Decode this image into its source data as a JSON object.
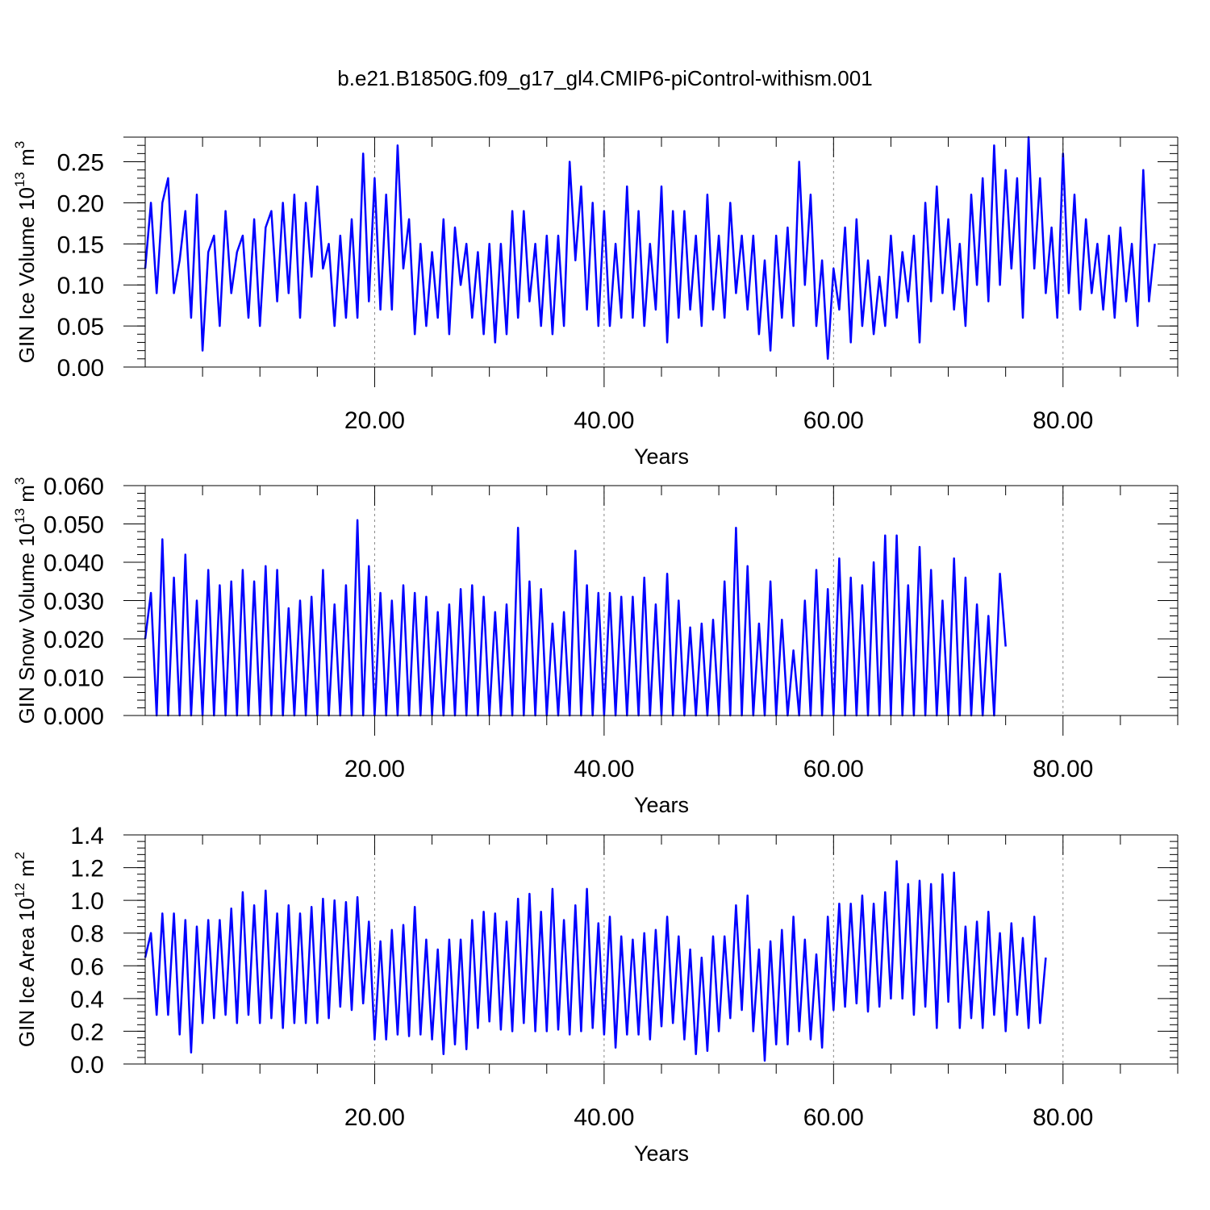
{
  "figure_title": "b.e21.B1850G.f09_g17_gl4.CMIP6-piControl-withism.001",
  "line_color": "#0000ff",
  "grid_color": "#888888",
  "chart_data": [
    {
      "type": "line",
      "title": "",
      "xlabel": "Years",
      "ylabel": "GIN Ice Volume 10",
      "ylabel_sup": "13",
      "ylabel_unit": "m",
      "ylabel_unit_sup": "3",
      "xlim": [
        0,
        90
      ],
      "ylim": [
        0,
        0.28
      ],
      "xticks": [
        20,
        40,
        60,
        80
      ],
      "xtick_labels": [
        "20.00",
        "40.00",
        "60.00",
        "80.00"
      ],
      "yticks": [
        0,
        0.05,
        0.1,
        0.15,
        0.2,
        0.25
      ],
      "ytick_labels": [
        "0.00",
        "0.05",
        "0.10",
        "0.15",
        "0.20",
        "0.25"
      ],
      "grid": "vertical dashed at major x ticks",
      "series": [
        {
          "x_start": 0,
          "x_step": 0.5,
          "values": [
            0.12,
            0.2,
            0.09,
            0.2,
            0.23,
            0.09,
            0.13,
            0.19,
            0.06,
            0.21,
            0.02,
            0.14,
            0.16,
            0.05,
            0.19,
            0.09,
            0.14,
            0.16,
            0.06,
            0.18,
            0.05,
            0.17,
            0.19,
            0.08,
            0.2,
            0.09,
            0.21,
            0.06,
            0.2,
            0.11,
            0.22,
            0.12,
            0.15,
            0.05,
            0.16,
            0.06,
            0.18,
            0.06,
            0.26,
            0.08,
            0.23,
            0.07,
            0.21,
            0.07,
            0.27,
            0.12,
            0.18,
            0.04,
            0.15,
            0.05,
            0.14,
            0.06,
            0.18,
            0.04,
            0.17,
            0.1,
            0.15,
            0.06,
            0.14,
            0.04,
            0.15,
            0.03,
            0.15,
            0.04,
            0.19,
            0.06,
            0.19,
            0.08,
            0.15,
            0.05,
            0.16,
            0.04,
            0.16,
            0.05,
            0.25,
            0.13,
            0.22,
            0.07,
            0.2,
            0.05,
            0.19,
            0.05,
            0.15,
            0.06,
            0.22,
            0.06,
            0.19,
            0.05,
            0.15,
            0.07,
            0.22,
            0.03,
            0.19,
            0.06,
            0.19,
            0.07,
            0.16,
            0.05,
            0.21,
            0.07,
            0.16,
            0.06,
            0.2,
            0.09,
            0.16,
            0.07,
            0.16,
            0.04,
            0.13,
            0.02,
            0.16,
            0.06,
            0.17,
            0.05,
            0.25,
            0.1,
            0.21,
            0.05,
            0.13,
            0.01,
            0.12,
            0.07,
            0.17,
            0.03,
            0.18,
            0.05,
            0.13,
            0.04,
            0.11,
            0.05,
            0.16,
            0.06,
            0.14,
            0.08,
            0.16,
            0.03,
            0.2,
            0.08,
            0.22,
            0.09,
            0.18,
            0.07,
            0.15,
            0.05,
            0.21,
            0.1,
            0.23,
            0.08,
            0.27,
            0.1,
            0.24,
            0.12,
            0.23,
            0.06,
            0.28,
            0.12,
            0.23,
            0.09,
            0.17,
            0.06,
            0.26,
            0.09,
            0.21,
            0.07,
            0.18,
            0.09,
            0.15,
            0.07,
            0.16,
            0.06,
            0.17,
            0.08,
            0.15,
            0.05,
            0.24,
            0.08,
            0.15
          ]
        }
      ]
    },
    {
      "type": "line",
      "title": "",
      "xlabel": "Years",
      "ylabel": "GIN Snow Volume 10",
      "ylabel_sup": "13",
      "ylabel_unit": "m",
      "ylabel_unit_sup": "3",
      "xlim": [
        0,
        90
      ],
      "ylim": [
        0,
        0.06
      ],
      "xticks": [
        20,
        40,
        60,
        80
      ],
      "xtick_labels": [
        "20.00",
        "40.00",
        "60.00",
        "80.00"
      ],
      "yticks": [
        0,
        0.01,
        0.02,
        0.03,
        0.04,
        0.05,
        0.06
      ],
      "ytick_labels": [
        "0.000",
        "0.010",
        "0.020",
        "0.030",
        "0.040",
        "0.050",
        "0.060"
      ],
      "grid": "vertical dashed at major x ticks",
      "series": [
        {
          "x_start": 0,
          "x_step": 0.5,
          "values": [
            0.02,
            0.032,
            0.0,
            0.046,
            0.0,
            0.036,
            0.0,
            0.042,
            0.0,
            0.03,
            0.0,
            0.038,
            0.0,
            0.034,
            0.0,
            0.035,
            0.0,
            0.038,
            0.0,
            0.035,
            0.0,
            0.039,
            0.0,
            0.038,
            0.0,
            0.028,
            0.0,
            0.03,
            0.0,
            0.031,
            0.0,
            0.038,
            0.0,
            0.029,
            0.0,
            0.034,
            0.0,
            0.051,
            0.0,
            0.039,
            0.0,
            0.032,
            0.0,
            0.03,
            0.0,
            0.034,
            0.0,
            0.032,
            0.0,
            0.031,
            0.0,
            0.027,
            0.0,
            0.029,
            0.0,
            0.033,
            0.0,
            0.034,
            0.0,
            0.031,
            0.0,
            0.027,
            0.0,
            0.029,
            0.0,
            0.049,
            0.0,
            0.035,
            0.0,
            0.033,
            0.0,
            0.024,
            0.0,
            0.027,
            0.0,
            0.043,
            0.0,
            0.034,
            0.0,
            0.032,
            0.0,
            0.032,
            0.0,
            0.031,
            0.0,
            0.031,
            0.0,
            0.036,
            0.0,
            0.029,
            0.0,
            0.037,
            0.0,
            0.03,
            0.0,
            0.023,
            0.0,
            0.024,
            0.0,
            0.025,
            0.0,
            0.035,
            0.0,
            0.049,
            0.0,
            0.039,
            0.0,
            0.024,
            0.0,
            0.035,
            0.0,
            0.025,
            0.0,
            0.017,
            0.0,
            0.03,
            0.0,
            0.038,
            0.0,
            0.033,
            0.0,
            0.041,
            0.0,
            0.036,
            0.0,
            0.034,
            0.0,
            0.04,
            0.0,
            0.047,
            0.0,
            0.047,
            0.0,
            0.034,
            0.0,
            0.044,
            0.0,
            0.038,
            0.0,
            0.03,
            0.0,
            0.041,
            0.0,
            0.036,
            0.0,
            0.029,
            0.0,
            0.026,
            0.0,
            0.037,
            0.018
          ]
        }
      ]
    },
    {
      "type": "line",
      "title": "",
      "xlabel": "Years",
      "ylabel": "GIN Ice Area 10",
      "ylabel_sup": "12",
      "ylabel_unit": "m",
      "ylabel_unit_sup": "2",
      "xlim": [
        0,
        90
      ],
      "ylim": [
        0,
        1.4
      ],
      "xticks": [
        20,
        40,
        60,
        80
      ],
      "xtick_labels": [
        "20.00",
        "40.00",
        "60.00",
        "80.00"
      ],
      "yticks": [
        0,
        0.2,
        0.4,
        0.6,
        0.8,
        1.0,
        1.2,
        1.4
      ],
      "ytick_labels": [
        "0.0",
        "0.2",
        "0.4",
        "0.6",
        "0.8",
        "1.0",
        "1.2",
        "1.4"
      ],
      "grid": "vertical dashed at major x ticks",
      "series": [
        {
          "x_start": 0,
          "x_step": 0.5,
          "values": [
            0.65,
            0.8,
            0.3,
            0.92,
            0.3,
            0.92,
            0.18,
            0.88,
            0.07,
            0.84,
            0.25,
            0.88,
            0.28,
            0.88,
            0.3,
            0.95,
            0.25,
            1.05,
            0.3,
            0.97,
            0.25,
            1.06,
            0.28,
            0.92,
            0.22,
            0.97,
            0.25,
            0.92,
            0.25,
            0.96,
            0.25,
            1.01,
            0.28,
            1.0,
            0.35,
            0.99,
            0.33,
            1.02,
            0.37,
            0.87,
            0.15,
            0.75,
            0.15,
            0.82,
            0.18,
            0.85,
            0.17,
            0.96,
            0.18,
            0.76,
            0.15,
            0.7,
            0.06,
            0.76,
            0.12,
            0.76,
            0.09,
            0.88,
            0.22,
            0.93,
            0.26,
            0.92,
            0.21,
            0.87,
            0.2,
            1.01,
            0.25,
            1.04,
            0.2,
            0.93,
            0.2,
            1.07,
            0.21,
            0.88,
            0.18,
            0.97,
            0.2,
            1.07,
            0.22,
            0.86,
            0.18,
            0.9,
            0.1,
            0.78,
            0.18,
            0.76,
            0.18,
            0.8,
            0.15,
            0.82,
            0.23,
            0.9,
            0.25,
            0.78,
            0.15,
            0.7,
            0.06,
            0.65,
            0.08,
            0.78,
            0.2,
            0.78,
            0.28,
            0.97,
            0.33,
            1.03,
            0.2,
            0.7,
            0.02,
            0.75,
            0.12,
            0.82,
            0.12,
            0.9,
            0.2,
            0.76,
            0.15,
            0.67,
            0.1,
            0.9,
            0.33,
            0.98,
            0.35,
            0.98,
            0.37,
            1.03,
            0.32,
            0.98,
            0.35,
            1.05,
            0.4,
            1.24,
            0.4,
            1.1,
            0.3,
            1.12,
            0.35,
            1.1,
            0.22,
            1.16,
            0.38,
            1.17,
            0.22,
            0.84,
            0.28,
            0.87,
            0.22,
            0.93,
            0.3,
            0.8,
            0.2,
            0.86,
            0.3,
            0.77,
            0.22,
            0.9,
            0.25,
            0.65
          ]
        }
      ]
    }
  ]
}
